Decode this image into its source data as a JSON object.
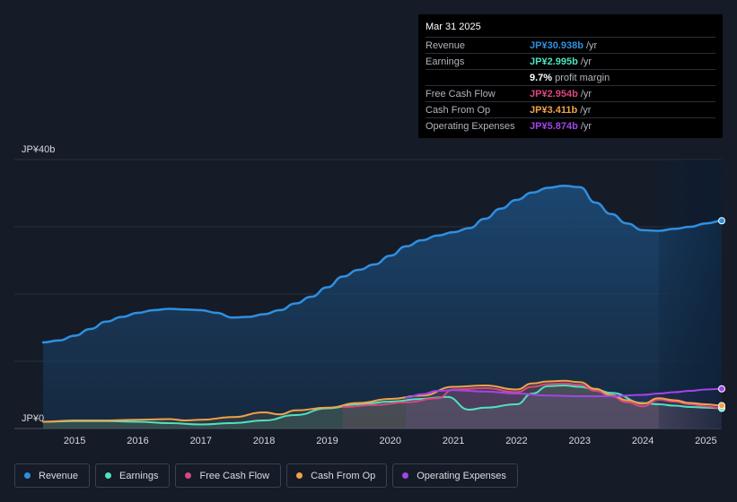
{
  "chart_data": {
    "type": "area",
    "y_axis_top_label": "JP¥40b",
    "y_axis_bottom_label": "JP¥0",
    "ylim": [
      0,
      40
    ],
    "xlim": [
      2014.5,
      2025.25
    ],
    "x_ticks": [
      "2015",
      "2016",
      "2017",
      "2018",
      "2019",
      "2020",
      "2021",
      "2022",
      "2023",
      "2024",
      "2025"
    ],
    "series": [
      {
        "name": "Revenue",
        "color": "#2f8fe0",
        "end_marker": true,
        "x": [
          2014.5,
          2014.75,
          2015.0,
          2015.25,
          2015.5,
          2015.75,
          2016.0,
          2016.25,
          2016.5,
          2016.75,
          2017.0,
          2017.25,
          2017.5,
          2017.75,
          2018.0,
          2018.25,
          2018.5,
          2018.75,
          2019.0,
          2019.25,
          2019.5,
          2019.75,
          2020.0,
          2020.25,
          2020.5,
          2020.75,
          2021.0,
          2021.25,
          2021.5,
          2021.75,
          2022.0,
          2022.25,
          2022.5,
          2022.75,
          2023.0,
          2023.25,
          2023.5,
          2023.75,
          2024.0,
          2024.25,
          2024.5,
          2024.75,
          2025.0,
          2025.25
        ],
        "values": [
          12.8,
          13.1,
          13.8,
          14.8,
          15.9,
          16.6,
          17.2,
          17.6,
          17.8,
          17.7,
          17.6,
          17.2,
          16.5,
          16.6,
          17.0,
          17.6,
          18.6,
          19.6,
          21.0,
          22.6,
          23.6,
          24.4,
          25.7,
          27.1,
          28.0,
          28.7,
          29.2,
          29.8,
          31.2,
          32.7,
          34.0,
          35.1,
          35.8,
          36.1,
          35.9,
          33.6,
          31.9,
          30.5,
          29.5,
          29.4,
          29.7,
          30.0,
          30.5,
          30.9
        ]
      },
      {
        "name": "Earnings",
        "color": "#4ee2c0",
        "end_marker": true,
        "x": [
          2014.5,
          2015.0,
          2015.5,
          2016.0,
          2016.5,
          2017.0,
          2017.5,
          2018.0,
          2018.5,
          2019.0,
          2019.5,
          2020.0,
          2020.5,
          2020.75,
          2020.9,
          2021.25,
          2021.5,
          2022.0,
          2022.25,
          2022.5,
          2022.75,
          2023.0,
          2023.25,
          2023.5,
          2024.0,
          2024.25,
          2024.5,
          2024.75,
          2025.0,
          2025.25
        ],
        "values": [
          1.0,
          1.1,
          1.1,
          1.0,
          0.8,
          0.6,
          0.8,
          1.2,
          2.0,
          3.0,
          3.6,
          4.0,
          4.4,
          4.6,
          4.7,
          2.8,
          3.1,
          3.6,
          5.2,
          6.3,
          6.4,
          6.2,
          5.8,
          5.3,
          3.8,
          3.6,
          3.4,
          3.2,
          3.1,
          3.0
        ]
      },
      {
        "name": "Free Cash Flow",
        "color": "#d9477e",
        "end_marker": false,
        "x": [
          2019.25,
          2019.75,
          2020.25,
          2020.75,
          2021.0,
          2021.5,
          2022.0,
          2022.25,
          2022.5,
          2022.75,
          2023.0,
          2023.25,
          2023.5,
          2023.75,
          2024.0,
          2024.25,
          2024.5,
          2024.75,
          2025.0,
          2025.25
        ],
        "values": [
          3.2,
          3.5,
          3.9,
          4.5,
          5.8,
          6.0,
          5.4,
          6.2,
          6.6,
          6.7,
          6.5,
          5.6,
          4.8,
          3.9,
          3.3,
          4.3,
          4.0,
          3.6,
          3.3,
          3.0
        ]
      },
      {
        "name": "Cash From Op",
        "color": "#f0a24a",
        "end_marker": true,
        "x": [
          2014.5,
          2015.0,
          2015.5,
          2016.0,
          2016.5,
          2016.75,
          2017.0,
          2017.5,
          2018.0,
          2018.25,
          2018.5,
          2019.0,
          2019.5,
          2020.0,
          2020.5,
          2021.0,
          2021.5,
          2022.0,
          2022.25,
          2022.5,
          2022.75,
          2023.0,
          2023.25,
          2023.5,
          2023.75,
          2024.0,
          2024.25,
          2024.5,
          2024.75,
          2025.0,
          2025.25
        ],
        "values": [
          1.0,
          1.2,
          1.2,
          1.3,
          1.4,
          1.2,
          1.3,
          1.7,
          2.4,
          2.1,
          2.7,
          3.1,
          3.8,
          4.4,
          4.9,
          6.2,
          6.4,
          5.8,
          6.7,
          7.0,
          7.1,
          6.9,
          5.9,
          5.0,
          4.2,
          3.7,
          4.5,
          4.2,
          3.8,
          3.6,
          3.4
        ]
      },
      {
        "name": "Operating Expenses",
        "color": "#a046e6",
        "end_marker": true,
        "x": [
          2020.25,
          2020.5,
          2020.75,
          2021.0,
          2021.5,
          2022.0,
          2022.5,
          2023.0,
          2023.5,
          2024.0,
          2024.25,
          2024.5,
          2024.75,
          2025.0,
          2025.25
        ],
        "values": [
          4.6,
          5.1,
          5.6,
          5.7,
          5.5,
          5.2,
          4.9,
          4.8,
          4.8,
          5.0,
          5.2,
          5.4,
          5.6,
          5.8,
          5.9
        ]
      }
    ]
  },
  "tooltip": {
    "date": "Mar 31 2025",
    "rows": [
      {
        "label": "Revenue",
        "value": "JP¥30.938b",
        "unit": "/yr",
        "color": "#2f8fe0"
      },
      {
        "label": "Earnings",
        "value": "JP¥2.995b",
        "unit": "/yr",
        "color": "#4ee2c0"
      },
      {
        "label": "",
        "value": "9.7%",
        "unit": "profit margin",
        "color": "#ffffff"
      },
      {
        "label": "Free Cash Flow",
        "value": "JP¥2.954b",
        "unit": "/yr",
        "color": "#d9477e"
      },
      {
        "label": "Cash From Op",
        "value": "JP¥3.411b",
        "unit": "/yr",
        "color": "#f0a24a"
      },
      {
        "label": "Operating Expenses",
        "value": "JP¥5.874b",
        "unit": "/yr",
        "color": "#a046e6"
      }
    ]
  },
  "legend": [
    {
      "label": "Revenue",
      "color": "#2f8fe0"
    },
    {
      "label": "Earnings",
      "color": "#4ee2c0"
    },
    {
      "label": "Free Cash Flow",
      "color": "#d9477e"
    },
    {
      "label": "Cash From Op",
      "color": "#f0a24a"
    },
    {
      "label": "Operating Expenses",
      "color": "#a046e6"
    }
  ]
}
